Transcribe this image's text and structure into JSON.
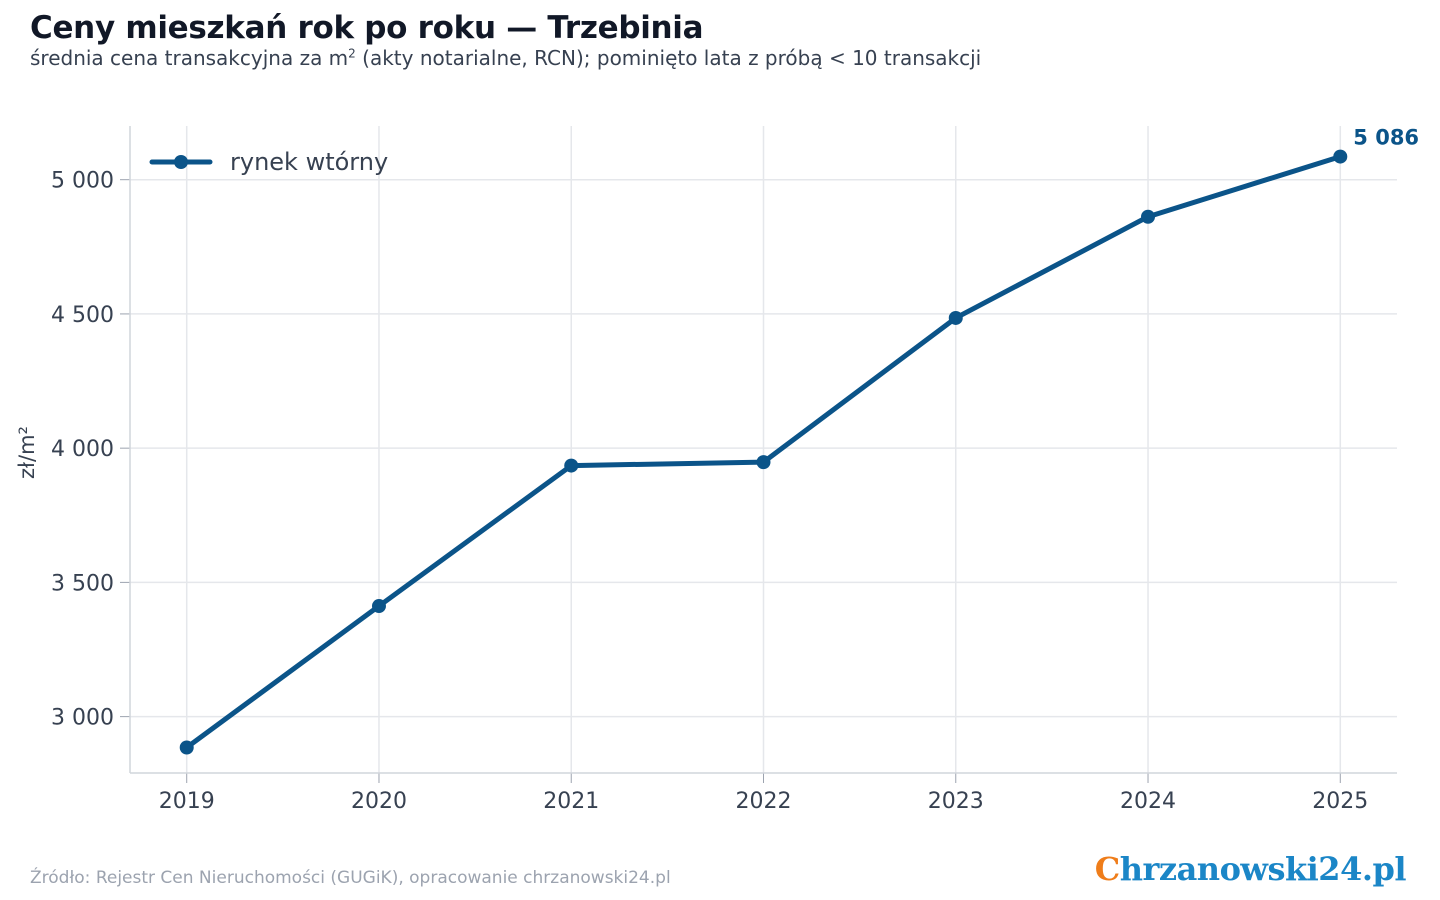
{
  "header": {
    "title": "Ceny mieszkań rok po roku — Trzebinia",
    "subtitle_before": "średnia cena transakcyjna za m",
    "subtitle_sup": "2",
    "subtitle_after": " (akty notarialne, RCN); pominięto lata z próbą < 10 transakcji"
  },
  "footer": {
    "source": "Źródło: Rejestr Cen Nieruchomości (GUGiK), opracowanie chrzanowski24.pl",
    "logo_first": "C",
    "logo_rest": "hrzanowski24.pl"
  },
  "colors": {
    "line": "#0b5489",
    "grid": "#e5e7eb",
    "logo_accent": "#ef7d1a",
    "logo_main": "#1b86c7"
  },
  "chart_data": {
    "type": "line",
    "x": [
      2019,
      2020,
      2021,
      2022,
      2023,
      2024,
      2025
    ],
    "series": [
      {
        "name": "rynek wtórny",
        "values": [
          2885,
          3412,
          3935,
          3948,
          4485,
          4862,
          5086
        ]
      }
    ],
    "ylabel": "zł/m²",
    "xlabel": "",
    "ylim": [
      2790,
      5200
    ],
    "yticks": [
      3000,
      3500,
      4000,
      4500,
      5000
    ],
    "ytick_labels": [
      "3 000",
      "3 500",
      "4 000",
      "4 500",
      "5 000"
    ],
    "xtick_labels": [
      "2019",
      "2020",
      "2021",
      "2022",
      "2023",
      "2024",
      "2025"
    ],
    "annotations": [
      {
        "x": 2025,
        "y": 5086,
        "text": "5 086"
      }
    ],
    "grid": true,
    "legend_position": "top-left"
  }
}
